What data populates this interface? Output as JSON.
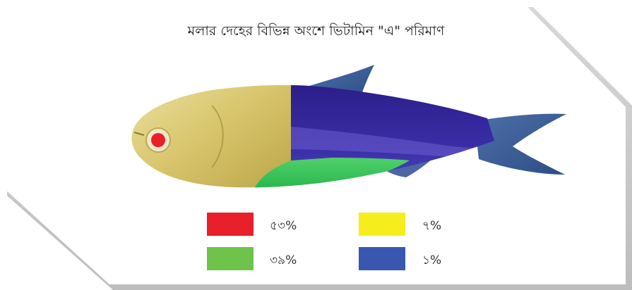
{
  "title": "মলার দেহের বিভিন্ন অংশে ভিটামিন \"এ\" পরিমাণ",
  "chart_data": {
    "type": "diagram",
    "title": "মলার দেহের বিভিন্ন অংশে ভিটামিন \"এ\" পরিমাণ",
    "segments": [
      {
        "part": "eye",
        "color": "#e8202a",
        "percent": 53,
        "label": "৫৩%"
      },
      {
        "part": "head",
        "color": "#f2e200",
        "percent": 7,
        "label": "৭%"
      },
      {
        "part": "belly",
        "color": "#6ec44b",
        "percent": 39,
        "label": "৩৯%"
      },
      {
        "part": "body",
        "color": "#3957b0",
        "percent": 1,
        "label": "১%"
      }
    ]
  },
  "legend": [
    {
      "color": "#e8202a",
      "label": "৫৩%"
    },
    {
      "color": "#f5ee1c",
      "label": "৭%"
    },
    {
      "color": "#6ec44b",
      "label": "৩৯%"
    },
    {
      "color": "#3957b0",
      "label": "১%"
    }
  ]
}
